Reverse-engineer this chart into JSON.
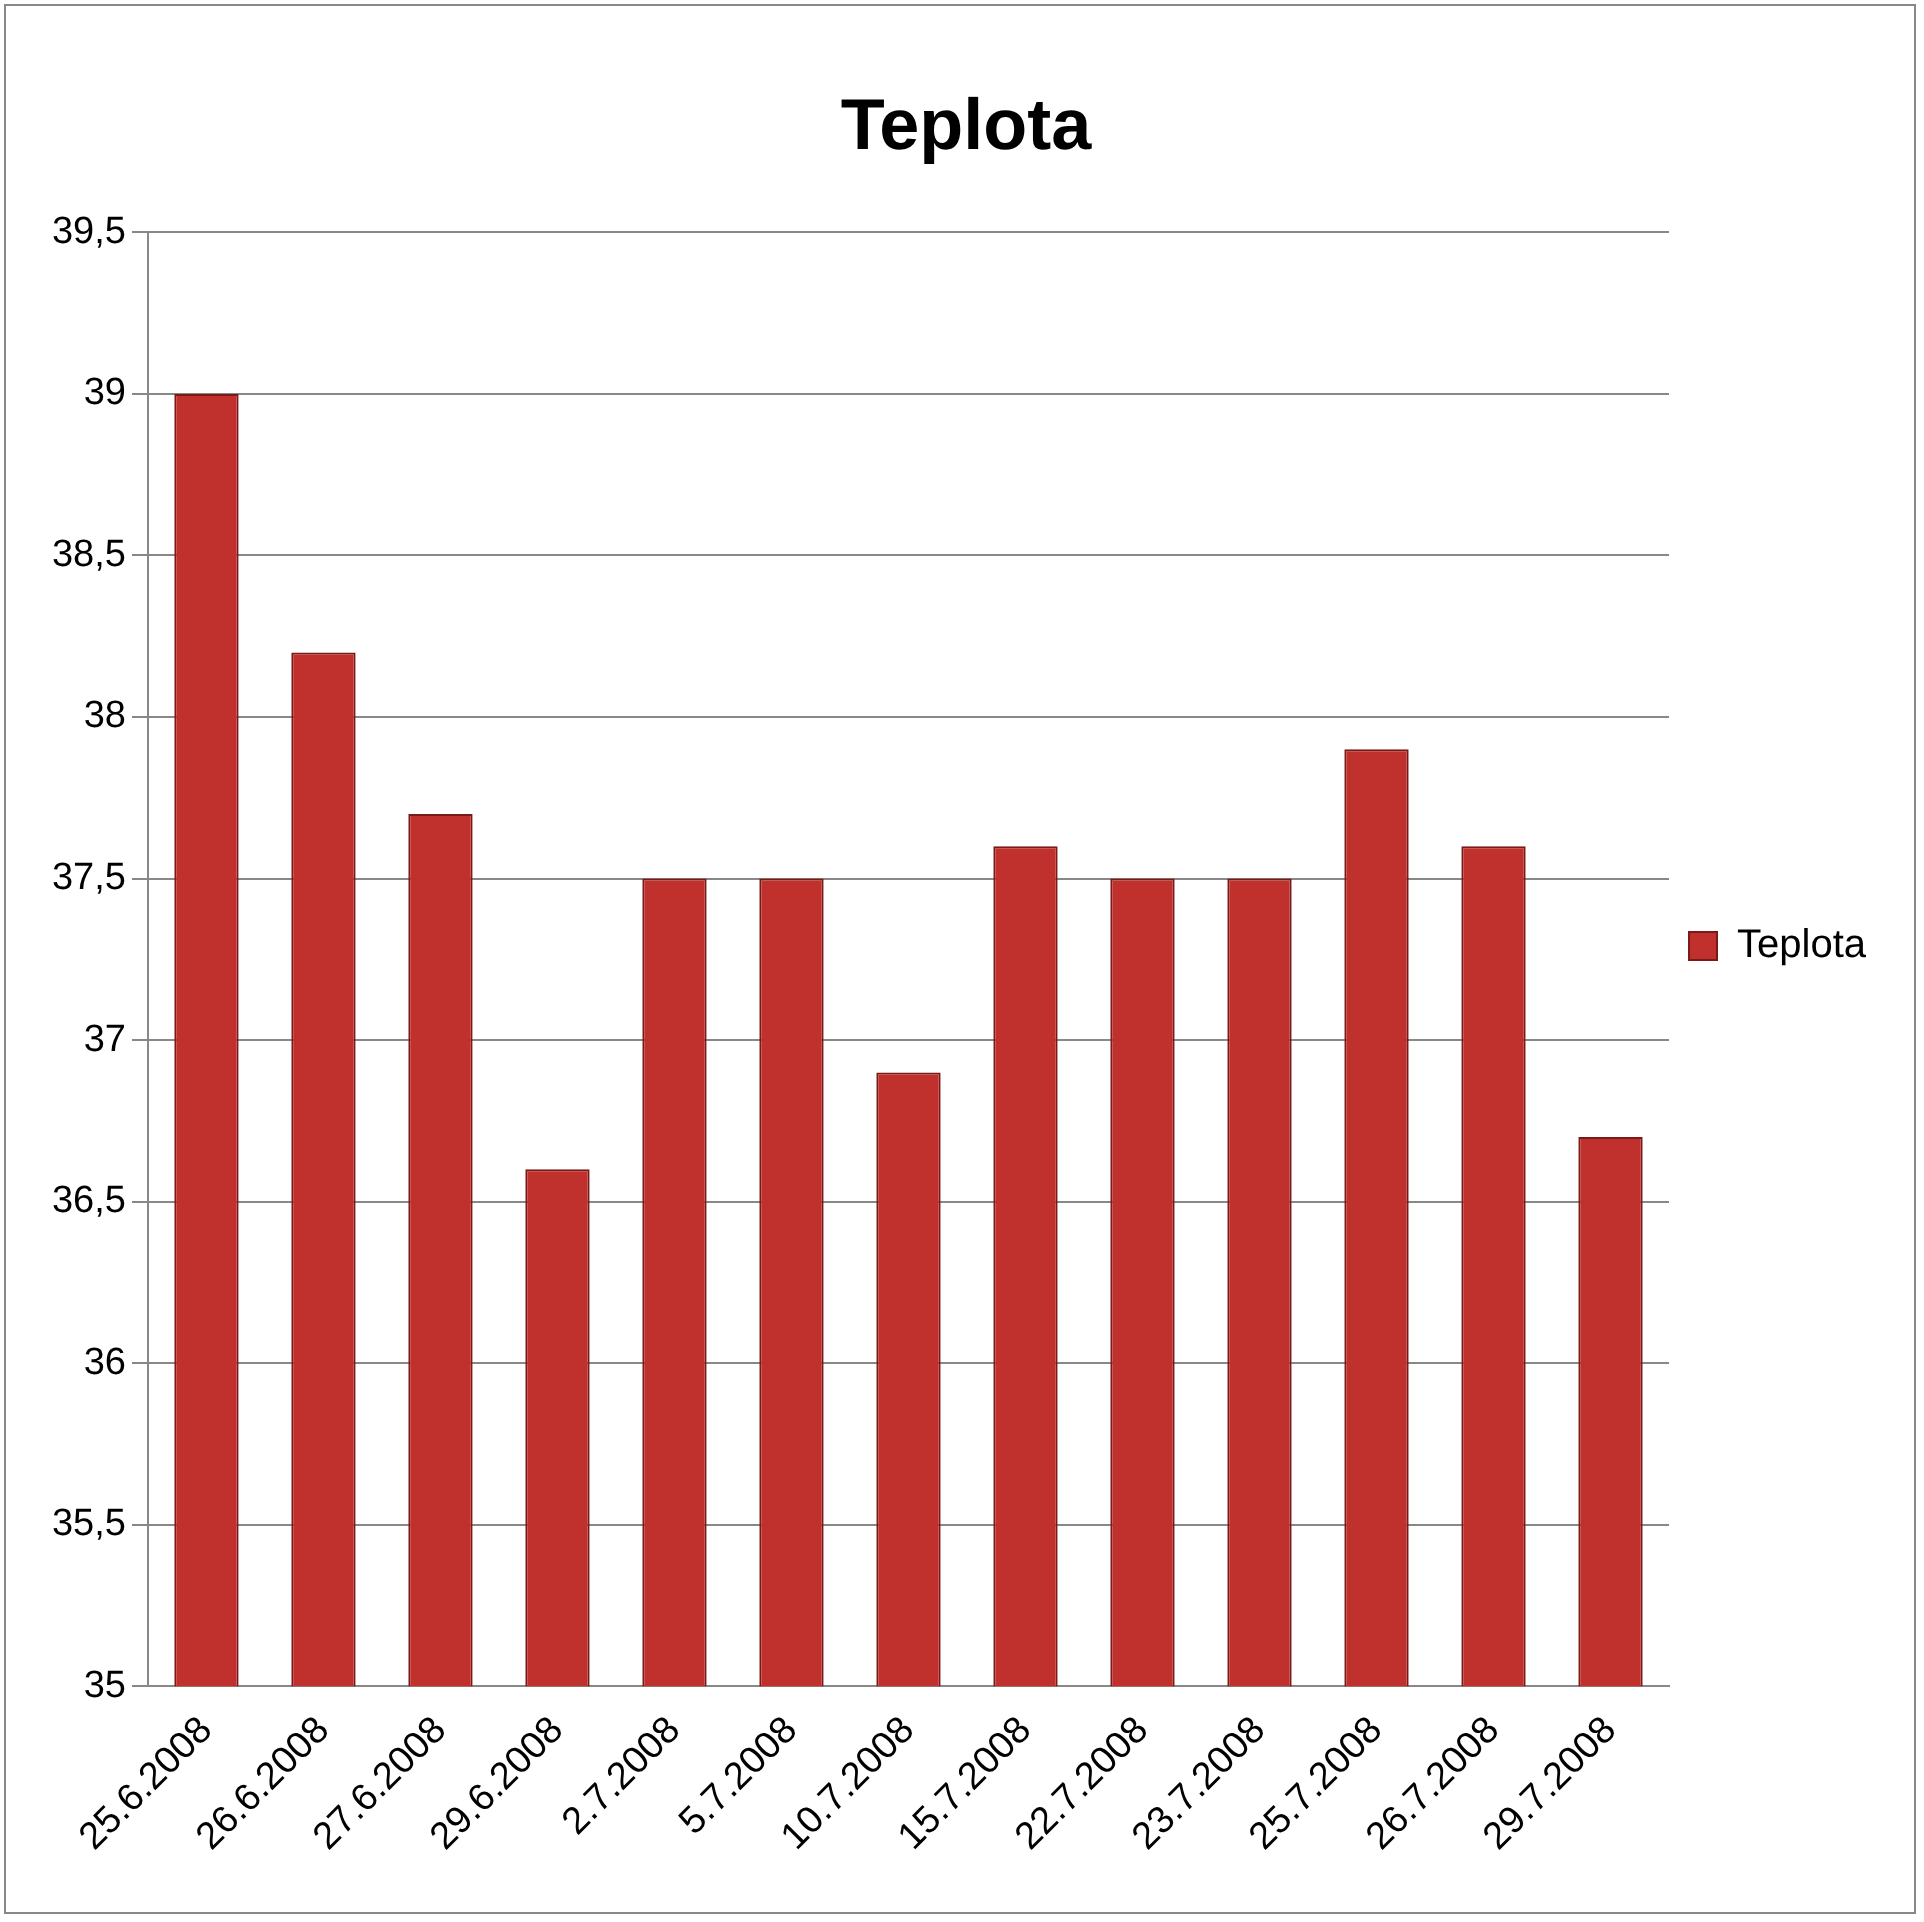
{
  "chart_data": {
    "type": "bar",
    "title": "Teplota",
    "categories": [
      "25.6.2008",
      "26.6.2008",
      "27.6.2008",
      "29.6.2008",
      "2.7.2008",
      "5.7.2008",
      "10.7.2008",
      "15.7.2008",
      "22.7.2008",
      "23.7.2008",
      "25.7.2008",
      "26.7.2008",
      "29.7.2008"
    ],
    "series": [
      {
        "name": "Teplota",
        "color": "#c0302c",
        "values": [
          39,
          38.2,
          37.7,
          36.6,
          37.5,
          37.5,
          36.9,
          37.6,
          37.5,
          37.5,
          37.9,
          37.6,
          36.7
        ]
      }
    ],
    "ylim": [
      35,
      39.5
    ],
    "yticks": [
      35,
      {
        "value": 35.5,
        "label": "35,5"
      },
      36,
      {
        "value": 36.5,
        "label": "36,5"
      },
      37,
      {
        "value": 37.5,
        "label": "37,5"
      },
      38,
      {
        "value": 38.5,
        "label": "38,5"
      },
      39,
      {
        "value": 39.5,
        "label": "39,5"
      }
    ],
    "grid": "y",
    "legend": "right"
  }
}
